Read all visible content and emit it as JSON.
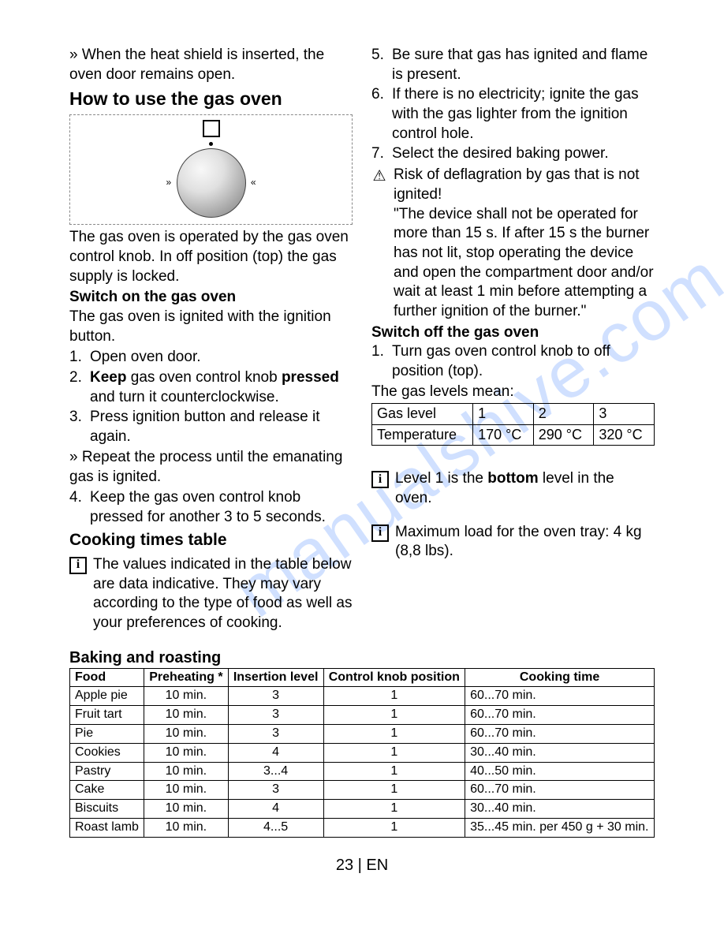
{
  "left": {
    "intro": "» When the heat shield is inserted, the oven door remains open.",
    "h1": "How to use the gas oven",
    "p1": "The gas oven is operated by the gas oven control knob. In off position (top) the gas supply is locked.",
    "h2": "Switch on the gas oven",
    "p2": "The gas oven is ignited with the ignition button.",
    "steps_a": [
      "Open oven door.",
      "<b>Keep</b> gas oven control knob <b>pressed</b> and turn it counterclockwise.",
      "Press ignition button and release it again."
    ],
    "repeat": "» Repeat the process until the emanating gas is ignited.",
    "steps_b": [
      "Keep the gas oven control knob pressed for another 3 to 5 seconds."
    ],
    "h3": "Cooking times table",
    "info1": "The values indicated in the table below are data indicative. They may vary according to the type of food as well as your preferences of cooking."
  },
  "right": {
    "steps_top": [
      "Be sure that gas has ignited and flame is present.",
      "If there is no electricity; ignite the gas with the gas lighter from the ignition control hole.",
      "Select the desired baking power."
    ],
    "warn": "Risk of deflagration by gas that is not ignited!\n\"The device shall not be operated for more than 15 s. If after 15 s the burner has not lit, stop operating the device and open the compartment door and/or wait at least 1 min before attempting a further ignition of the burner.\"",
    "h_off": "Switch off the gas oven",
    "off_step": "Turn gas oven control knob to off position (top).",
    "gas_means": "The gas levels mean:",
    "gas_table": {
      "headers": [
        "Gas level",
        "1",
        "2",
        "3"
      ],
      "row": [
        "Temperature",
        "170 °C",
        "290 °C",
        "320 °C"
      ]
    },
    "info2_a": "Level 1 is the ",
    "info2_b": "bottom",
    "info2_c": " level in the oven.",
    "info3": "Maximum load for the oven tray: 4 kg (8,8 lbs)."
  },
  "bake": {
    "heading": "Baking and roasting",
    "columns": [
      "Food",
      "Preheating *",
      "Insertion level",
      "Control knob position",
      "Cooking time"
    ],
    "rows": [
      [
        "Apple pie",
        "10 min.",
        "3",
        "1",
        "60...70 min."
      ],
      [
        "Fruit tart",
        "10 min.",
        "3",
        "1",
        "60...70 min."
      ],
      [
        "Pie",
        "10 min.",
        "3",
        "1",
        "60...70 min."
      ],
      [
        "Cookies",
        "10 min.",
        "4",
        "1",
        "30...40 min."
      ],
      [
        "Pastry",
        "10 min.",
        "3...4",
        "1",
        "40...50 min."
      ],
      [
        "Cake",
        "10 min.",
        "3",
        "1",
        "60...70 min."
      ],
      [
        "Biscuits",
        "10 min.",
        "4",
        "1",
        "30...40 min."
      ],
      [
        "Roast lamb",
        "10 min.",
        "4...5",
        "1",
        "35...45 min. per 450 g + 30 min."
      ]
    ]
  },
  "footer": "23 | EN",
  "watermark": "manualshive.com"
}
